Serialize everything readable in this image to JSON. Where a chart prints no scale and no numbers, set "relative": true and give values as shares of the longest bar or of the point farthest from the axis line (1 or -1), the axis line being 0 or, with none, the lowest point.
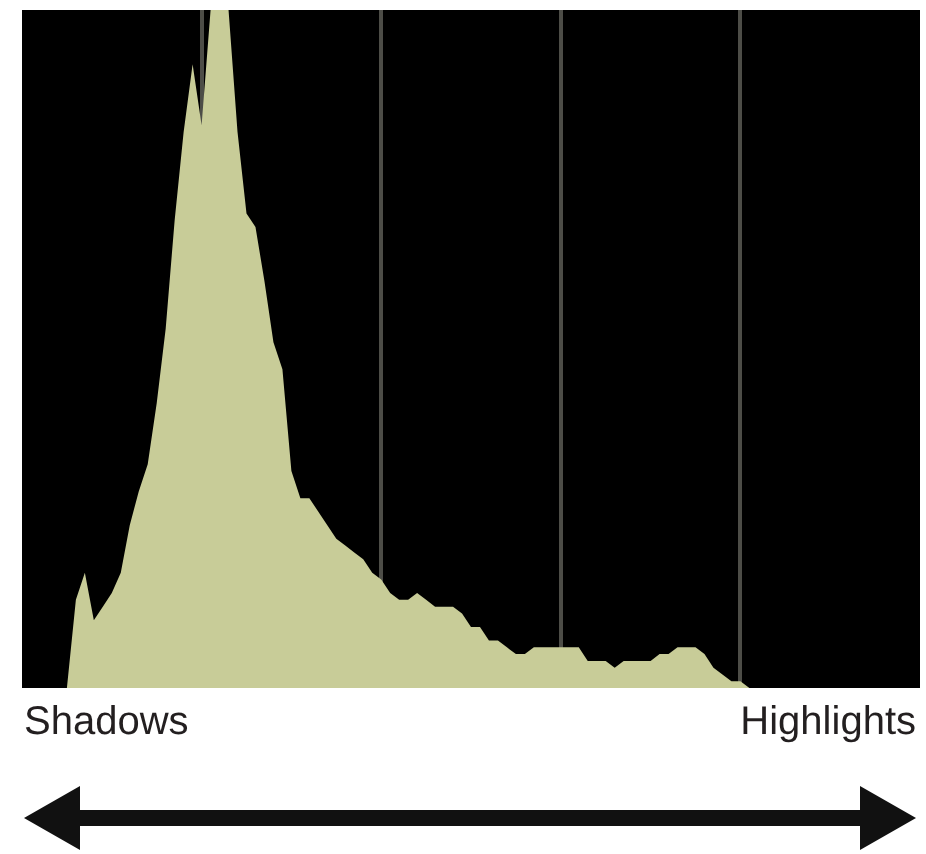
{
  "chart_data": {
    "type": "area",
    "relative": true,
    "categories": [
      null,
      null,
      null,
      null,
      null,
      null,
      null,
      null,
      null,
      null,
      null,
      null,
      null,
      null,
      null,
      null,
      null,
      null,
      null,
      null,
      null,
      null,
      null,
      null,
      null,
      null,
      null,
      null,
      null,
      null,
      null,
      null,
      null,
      null,
      null,
      null,
      null,
      null,
      null,
      null,
      null,
      null,
      null,
      null,
      null,
      null,
      null,
      null,
      null,
      null,
      null,
      null,
      null,
      null,
      null,
      null,
      null,
      null,
      null,
      null,
      null,
      null,
      null,
      null,
      null,
      null,
      null,
      null,
      null,
      null,
      null,
      null,
      null,
      null,
      null,
      null,
      null,
      null,
      null,
      null,
      null,
      null,
      null,
      null,
      null,
      null,
      null,
      null,
      null,
      null,
      null,
      null,
      null,
      null,
      null,
      null,
      null,
      null,
      null,
      null,
      null
    ],
    "values": [
      0,
      0,
      0,
      0,
      0,
      0,
      0.13,
      0.17,
      0.1,
      0.12,
      0.14,
      0.17,
      0.24,
      0.29,
      0.33,
      0.42,
      0.53,
      0.69,
      0.82,
      0.92,
      0.83,
      1,
      1,
      1,
      0.82,
      0.7,
      0.68,
      0.6,
      0.51,
      0.47,
      0.32,
      0.28,
      0.28,
      0.26,
      0.24,
      0.22,
      0.21,
      0.2,
      0.19,
      0.17,
      0.16,
      0.14,
      0.13,
      0.13,
      0.14,
      0.13,
      0.12,
      0.12,
      0.12,
      0.11,
      0.09,
      0.09,
      0.07,
      0.07,
      0.06,
      0.05,
      0.05,
      0.06,
      0.06,
      0.06,
      0.06,
      0.06,
      0.06,
      0.04,
      0.04,
      0.04,
      0.03,
      0.04,
      0.04,
      0.04,
      0.04,
      0.05,
      0.05,
      0.06,
      0.06,
      0.06,
      0.05,
      0.03,
      0.02,
      0.01,
      0.01,
      0,
      0,
      0,
      0,
      0,
      0,
      0,
      0,
      0,
      0,
      0,
      0,
      0,
      0,
      0,
      0,
      0,
      0,
      0,
      0
    ],
    "color": "#c8cc98",
    "grid": "x",
    "annotations": [
      "Shadows",
      "Highlights"
    ]
  }
}
